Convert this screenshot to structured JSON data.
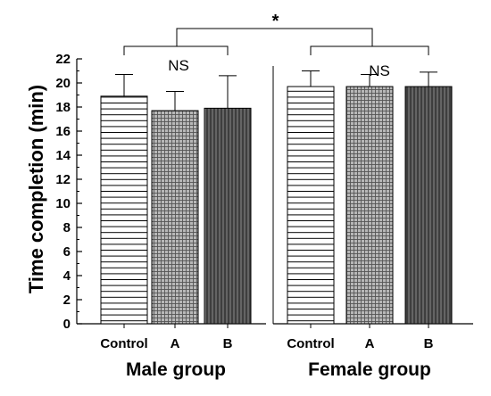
{
  "chart_data": {
    "type": "bar",
    "ylabel": "Time completion (min)",
    "ylim": [
      0,
      22
    ],
    "yticks": [
      "0",
      "2",
      "4",
      "6",
      "8",
      "10",
      "12",
      "14",
      "16",
      "18",
      "20",
      "22"
    ],
    "grid": false,
    "groups": [
      {
        "name": "Male group",
        "annotation": "NS",
        "bars": [
          {
            "category": "Control",
            "value": 18.9,
            "error": 1.8,
            "pattern": "horizontal-lines",
            "fill": "#ffffff"
          },
          {
            "category": "A",
            "value": 17.7,
            "error": 1.6,
            "pattern": "grid",
            "fill": "#b8b8b8"
          },
          {
            "category": "B",
            "value": 17.9,
            "error": 2.7,
            "pattern": "vertical-lines",
            "fill": "#4a4a4a"
          }
        ]
      },
      {
        "name": "Female group",
        "annotation": "NS",
        "bars": [
          {
            "category": "Control",
            "value": 19.7,
            "error": 1.3,
            "pattern": "horizontal-lines",
            "fill": "#ffffff"
          },
          {
            "category": "A",
            "value": 19.7,
            "error": 1.0,
            "pattern": "grid",
            "fill": "#b8b8b8"
          },
          {
            "category": "B",
            "value": 19.7,
            "error": 1.2,
            "pattern": "vertical-lines",
            "fill": "#4a4a4a"
          }
        ]
      }
    ],
    "between_groups_annotation": "*"
  }
}
